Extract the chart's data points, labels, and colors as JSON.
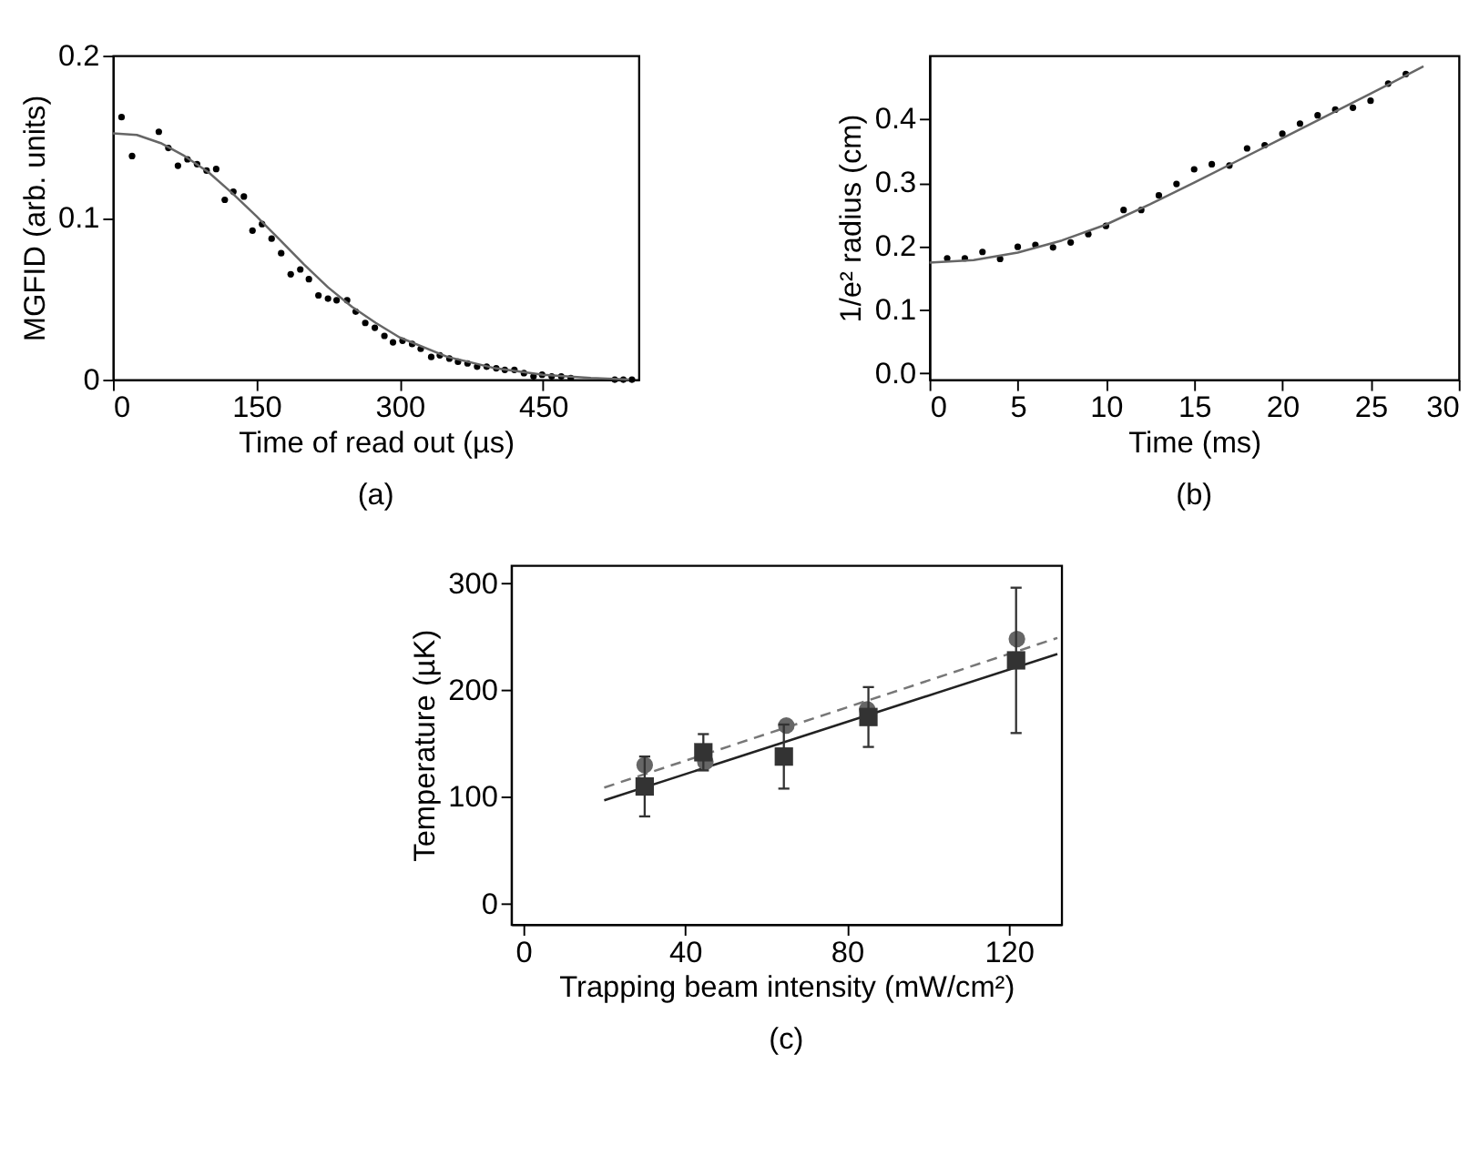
{
  "chart_data": [
    {
      "type": "scatter",
      "xlabel": "Time of read out (µs)",
      "ylabel": "MGFID (arb. units)",
      "xlim": [
        0,
        550
      ],
      "ylim": [
        0,
        0.2
      ],
      "xticks": [
        0,
        150,
        300,
        450
      ],
      "yticks": [
        0,
        0.1,
        0.2
      ],
      "grid": false,
      "annotations": [
        "(a)"
      ],
      "series": [
        {
          "type": "scatter",
          "marker": "circle",
          "color": "#000000",
          "x": [
            9,
            20,
            48,
            58,
            68,
            78,
            88,
            98,
            108,
            117,
            126,
            137,
            146,
            156,
            166,
            176,
            186,
            196,
            205,
            215,
            225,
            234,
            245,
            254,
            264,
            274,
            284,
            293,
            303,
            313,
            322,
            333,
            342,
            352,
            361,
            371,
            381,
            391,
            401,
            410,
            420,
            430,
            440,
            449,
            459,
            469,
            479,
            525,
            534,
            543
          ],
          "values": [
            0.162,
            0.138,
            0.153,
            0.143,
            0.132,
            0.136,
            0.133,
            0.129,
            0.13,
            0.111,
            0.116,
            0.113,
            0.092,
            0.096,
            0.087,
            0.078,
            0.065,
            0.068,
            0.062,
            0.052,
            0.05,
            0.049,
            0.049,
            0.042,
            0.035,
            0.032,
            0.027,
            0.023,
            0.024,
            0.022,
            0.019,
            0.014,
            0.015,
            0.013,
            0.011,
            0.01,
            0.008,
            0.008,
            0.007,
            0.006,
            0.006,
            0.004,
            0.002,
            0.003,
            0.002,
            0.002,
            0.001,
            0,
            0,
            0
          ]
        },
        {
          "type": "line",
          "line_style": "solid",
          "color": "#666666",
          "x": [
            0,
            25,
            50,
            75,
            100,
            125,
            150,
            175,
            200,
            225,
            250,
            275,
            300,
            350,
            400,
            450,
            500,
            540
          ],
          "values": [
            0.152,
            0.151,
            0.146,
            0.138,
            0.128,
            0.115,
            0.101,
            0.086,
            0.071,
            0.057,
            0.045,
            0.035,
            0.026,
            0.014,
            0.007,
            0.003,
            0.001,
            0
          ]
        }
      ]
    },
    {
      "type": "scatter",
      "xlabel": "Time (ms)",
      "ylabel": "1/e² radius (cm)",
      "xlim": [
        0,
        30
      ],
      "ylim": [
        -0.01,
        0.5
      ],
      "xticks": [
        0,
        5,
        10,
        15,
        20,
        25,
        30
      ],
      "yticks": [
        {
          "value": 0,
          "label": "0.0"
        },
        0.1,
        0.2,
        0.3,
        0.4
      ],
      "grid": false,
      "annotations": [
        "(b)"
      ],
      "series": [
        {
          "type": "scatter",
          "marker": "circle",
          "color": "#000000",
          "x": [
            1,
            2,
            3,
            4,
            5,
            6,
            7,
            8,
            9,
            10,
            11,
            12,
            13,
            14,
            15,
            16,
            17,
            18,
            19,
            20,
            21,
            22,
            23,
            24,
            25,
            26,
            27
          ],
          "values": [
            0.181,
            0.181,
            0.191,
            0.18,
            0.199,
            0.202,
            0.198,
            0.206,
            0.219,
            0.232,
            0.257,
            0.257,
            0.28,
            0.298,
            0.321,
            0.329,
            0.327,
            0.354,
            0.359,
            0.377,
            0.393,
            0.406,
            0.415,
            0.418,
            0.429,
            0.456,
            0.471
          ]
        },
        {
          "type": "line",
          "line_style": "solid",
          "color": "#666666",
          "x": [
            0,
            2.5,
            5,
            7.5,
            10,
            12.5,
            15,
            17.5,
            20,
            22.5,
            25,
            28
          ],
          "values": [
            0.174,
            0.178,
            0.19,
            0.209,
            0.234,
            0.266,
            0.3,
            0.335,
            0.37,
            0.405,
            0.44,
            0.483
          ]
        }
      ]
    },
    {
      "type": "scatter",
      "xlabel": "Trapping beam intensity (mW/cm²)",
      "ylabel": "Temperature (µK)",
      "xlim": [
        -3,
        133
      ],
      "ylim": [
        -19,
        317
      ],
      "xticks": [
        0,
        40,
        80,
        120
      ],
      "yticks": [
        0,
        100,
        200,
        300
      ],
      "grid": false,
      "annotations": [
        "(c)"
      ],
      "series": [
        {
          "type": "line",
          "line_style": "dashed",
          "color": "#777777",
          "x": [
            20,
            132
          ],
          "values": [
            109,
            249
          ]
        },
        {
          "type": "line",
          "line_style": "solid",
          "color": "#222222",
          "x": [
            20,
            132
          ],
          "values": [
            97,
            234
          ]
        },
        {
          "type": "scatter",
          "marker": "circle",
          "color": "#666666",
          "x": [
            30,
            45,
            65,
            85,
            122
          ],
          "values": [
            130,
            133,
            167,
            182,
            248
          ]
        },
        {
          "type": "scatter",
          "marker": "square",
          "color": "#333333",
          "x": [
            30,
            44.5,
            64.4,
            85.3,
            121.8
          ],
          "values": [
            110,
            142,
            138,
            175,
            228
          ],
          "errors": [
            28,
            17,
            30,
            28,
            68
          ]
        }
      ]
    }
  ]
}
